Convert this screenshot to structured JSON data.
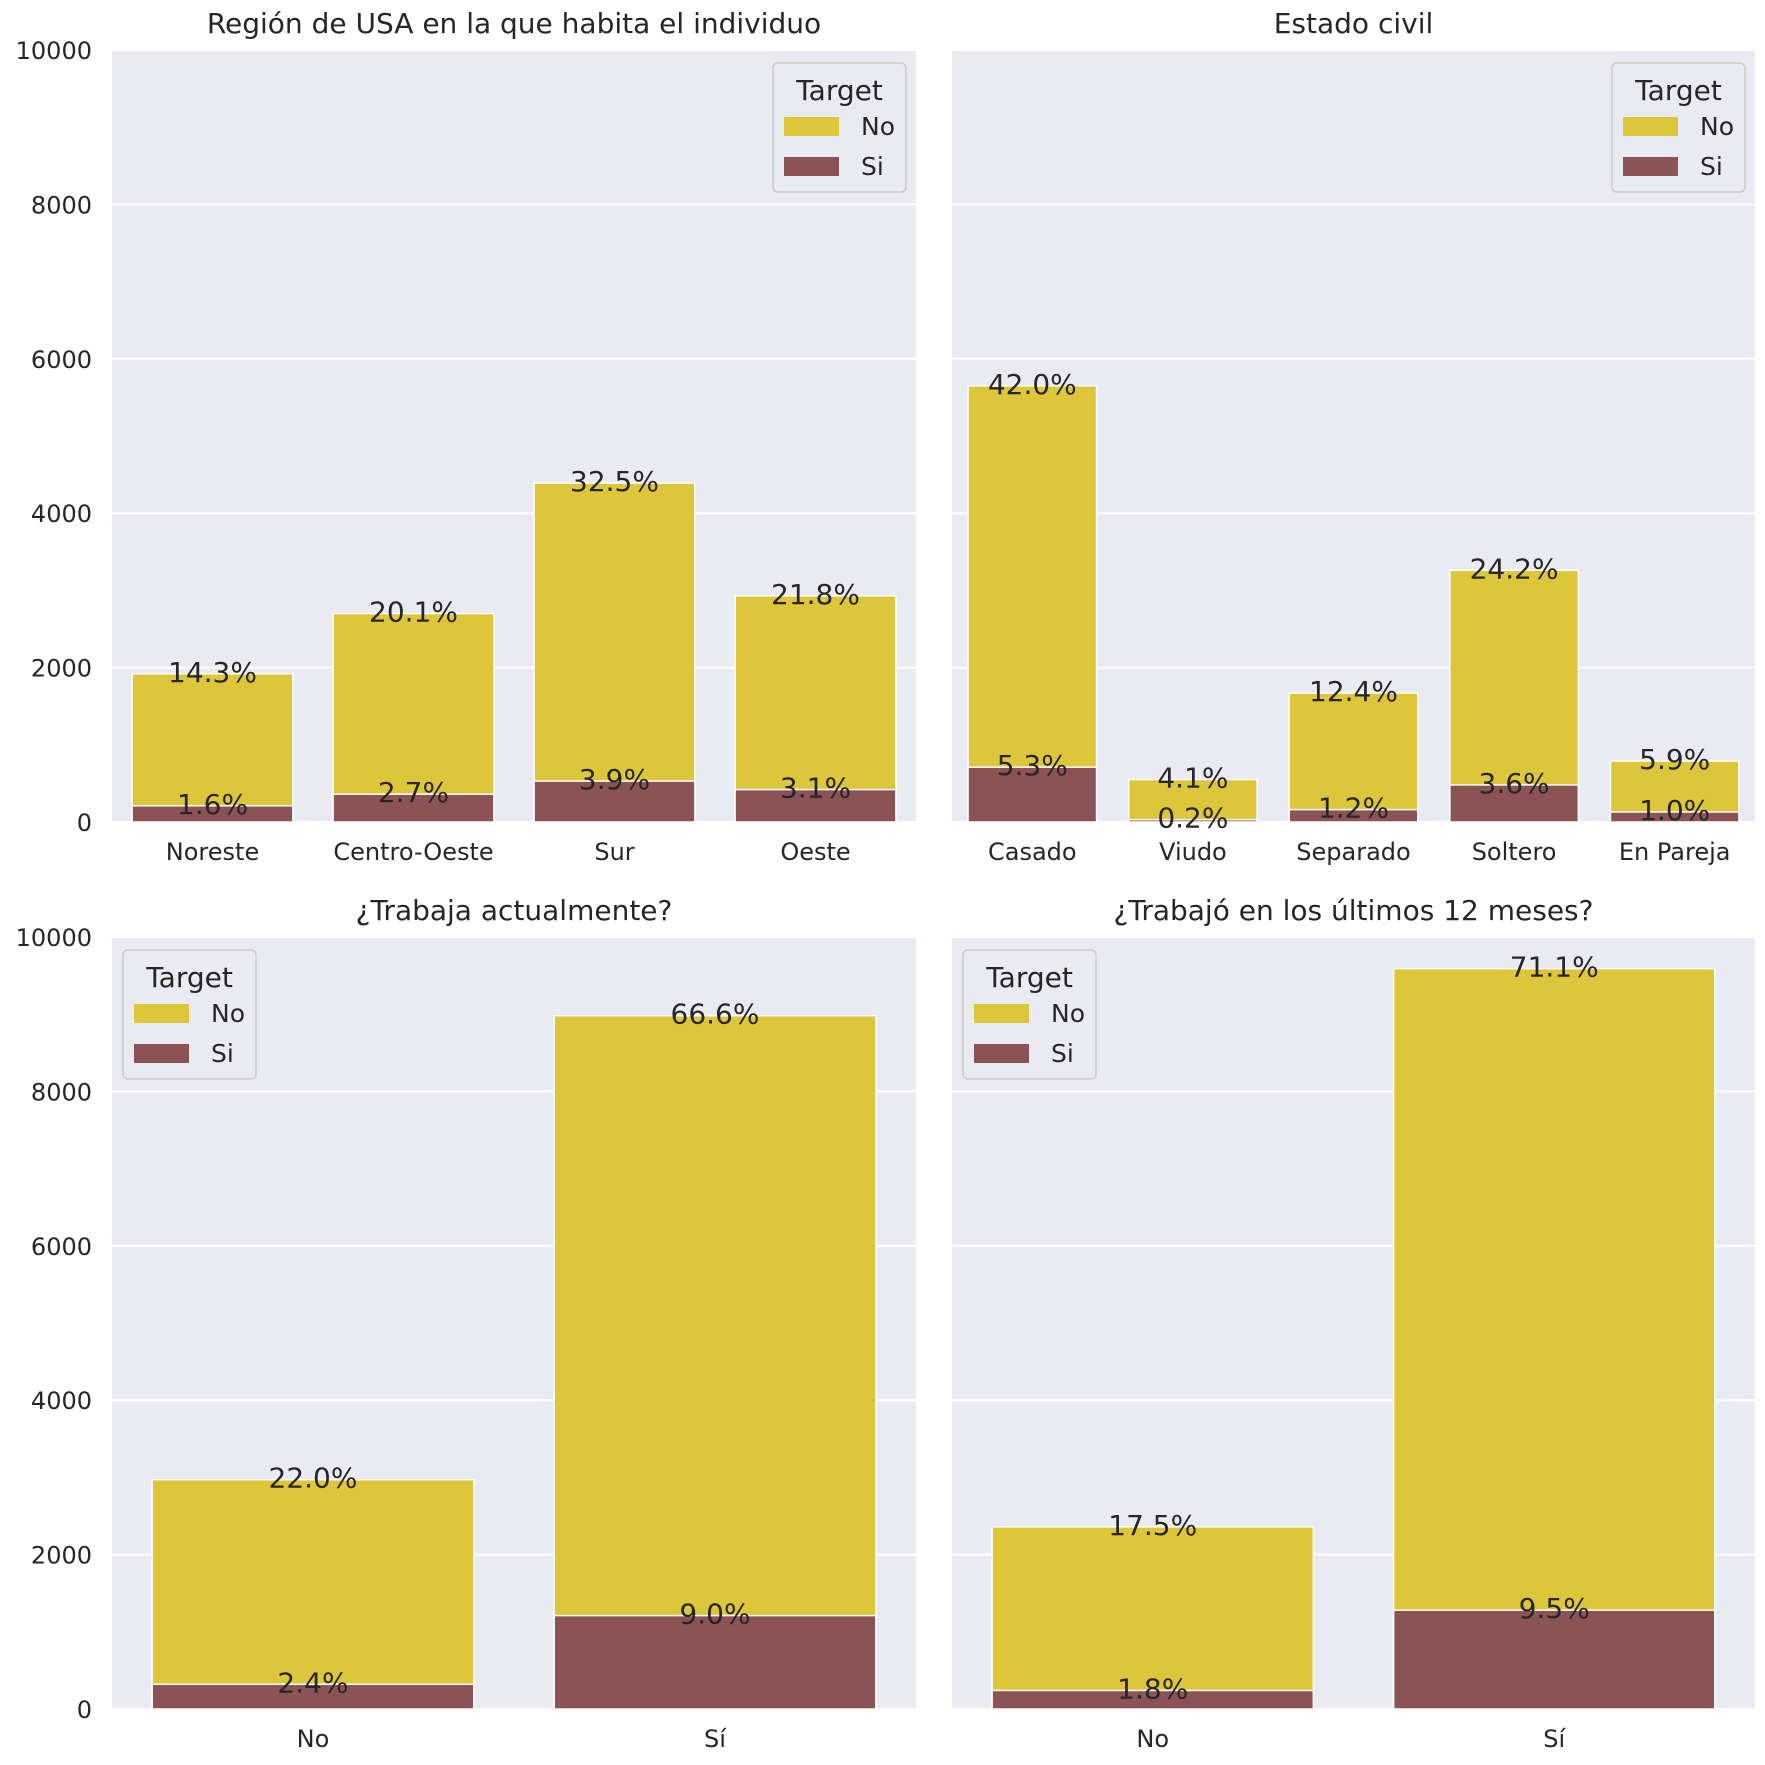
{
  "colors": {
    "No": "#ddc63a",
    "Si": "#8b5356",
    "background": "#eaeaf2"
  },
  "chart_data": [
    {
      "type": "bar",
      "stacked": "overlay",
      "title": "Región de USA en la que habita el individuo",
      "categories": [
        "Noreste",
        "Centro-Oeste",
        "Sur",
        "Oeste"
      ],
      "ylim": [
        0,
        10000
      ],
      "yticks": [
        "0",
        "2000",
        "4000",
        "6000",
        "8000",
        "10000"
      ],
      "grid": true,
      "legend": {
        "title": "Target",
        "position": "top-right",
        "entries": [
          "No",
          "Si"
        ]
      },
      "series": [
        {
          "name": "No",
          "values": [
            1920,
            2700,
            4390,
            2930
          ],
          "labels": [
            "14.3%",
            "20.1%",
            "32.5%",
            "21.8%"
          ]
        },
        {
          "name": "Si",
          "values": [
            210,
            360,
            530,
            420
          ],
          "labels": [
            "1.6%",
            "2.7%",
            "3.9%",
            "3.1%"
          ]
        }
      ]
    },
    {
      "type": "bar",
      "stacked": "overlay",
      "title": "Estado civil",
      "categories": [
        "Casado",
        "Viudo",
        "Separado",
        "Soltero",
        "En Pareja"
      ],
      "ylim": [
        0,
        10000
      ],
      "yticks": [
        "0",
        "2000",
        "4000",
        "6000",
        "8000",
        "10000"
      ],
      "grid": true,
      "legend": {
        "title": "Target",
        "position": "top-right",
        "entries": [
          "No",
          "Si"
        ]
      },
      "series": [
        {
          "name": "No",
          "values": [
            5650,
            550,
            1670,
            3260,
            790
          ],
          "labels": [
            "42.0%",
            "4.1%",
            "12.4%",
            "24.2%",
            "5.9%"
          ]
        },
        {
          "name": "Si",
          "values": [
            710,
            30,
            160,
            480,
            130
          ],
          "labels": [
            "5.3%",
            "0.2%",
            "1.2%",
            "3.6%",
            "1.0%"
          ]
        }
      ]
    },
    {
      "type": "bar",
      "stacked": "overlay",
      "title": "¿Trabaja actualmente?",
      "categories": [
        "No",
        "Sí"
      ],
      "ylim": [
        0,
        10000
      ],
      "yticks": [
        "0",
        "2000",
        "4000",
        "6000",
        "8000",
        "10000"
      ],
      "grid": true,
      "legend": {
        "title": "Target",
        "position": "top-left",
        "entries": [
          "No",
          "Si"
        ]
      },
      "series": [
        {
          "name": "No",
          "values": [
            2970,
            8980
          ],
          "labels": [
            "22.0%",
            "66.6%"
          ]
        },
        {
          "name": "Si",
          "values": [
            320,
            1210
          ],
          "labels": [
            "2.4%",
            "9.0%"
          ]
        }
      ]
    },
    {
      "type": "bar",
      "stacked": "overlay",
      "title": "¿Trabajó en los últimos 12 meses?",
      "categories": [
        "No",
        "Sí"
      ],
      "ylim": [
        0,
        10000
      ],
      "yticks": [
        "0",
        "2000",
        "4000",
        "6000",
        "8000",
        "10000"
      ],
      "grid": true,
      "legend": {
        "title": "Target",
        "position": "top-left",
        "entries": [
          "No",
          "Si"
        ]
      },
      "series": [
        {
          "name": "No",
          "values": [
            2360,
            9590
          ],
          "labels": [
            "17.5%",
            "71.1%"
          ]
        },
        {
          "name": "Si",
          "values": [
            240,
            1280
          ],
          "labels": [
            "1.8%",
            "9.5%"
          ]
        }
      ]
    }
  ]
}
